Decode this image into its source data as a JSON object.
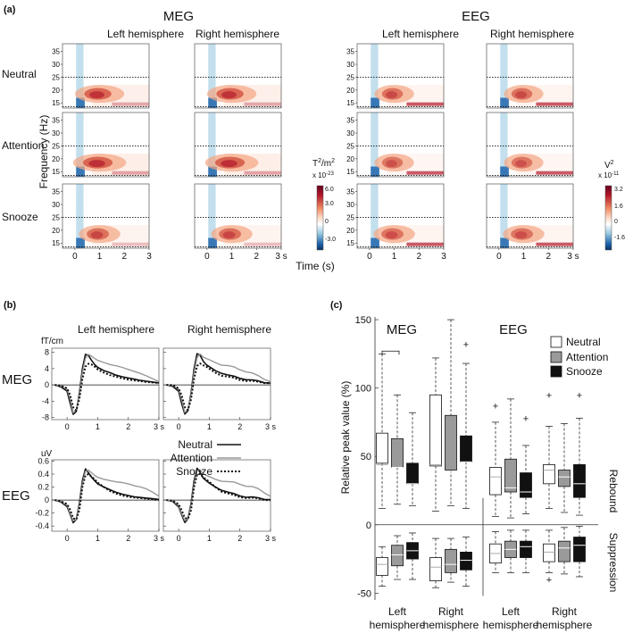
{
  "figure": {
    "panel_a": "(a)",
    "panel_b": "(b)",
    "panel_c": "(c)"
  },
  "chart_data": [
    {
      "type": "heatmap",
      "panel": "(a)",
      "groups": [
        "MEG",
        "EEG"
      ],
      "columns": [
        "Left hemisphere",
        "Right hemisphere"
      ],
      "rows": [
        "Neutral",
        "Attention",
        "Snooze"
      ],
      "ylabel": "Frequency (Hz)",
      "xlabel": "Time (s)",
      "yticks": [
        15,
        20,
        25,
        30,
        35
      ],
      "ylim": [
        13,
        38
      ],
      "xticks": [
        0,
        1,
        2,
        3
      ],
      "xlim": [
        -0.5,
        3
      ],
      "xunit": "s",
      "band_lines_hz": [
        25,
        13.5
      ],
      "meg_colorbar": {
        "unit_base": "T",
        "unit_sup": "2",
        "unit_sep": "/m",
        "unit_sup2": "2",
        "scale": "x 10",
        "scale_exp": "-23",
        "ticks": [
          "6.0",
          "3.0",
          "0",
          "-3.0"
        ]
      },
      "eeg_colorbar": {
        "unit_base": "V",
        "unit_sup": "2",
        "scale": "x 10",
        "scale_exp": "-11",
        "ticks": [
          "3.2",
          "1.6",
          "0",
          "-1.6"
        ]
      },
      "blobs": {
        "MEG": [
          [
            0.95,
            0.8
          ],
          [
            1.0,
            0.9
          ],
          [
            0.7,
            0.6
          ]
        ],
        "EEG": [
          [
            0.65,
            0.55
          ],
          [
            0.55,
            0.55
          ],
          [
            0.6,
            0.6
          ]
        ]
      }
    },
    {
      "type": "line",
      "panel": "(b)",
      "rows": [
        "MEG",
        "EEG"
      ],
      "columns": [
        "Left hemisphere",
        "Right hemisphere"
      ],
      "x": [
        -0.4,
        -0.2,
        0,
        0.1,
        0.2,
        0.3,
        0.4,
        0.5,
        0.6,
        0.7,
        0.8,
        0.9,
        1.0,
        1.2,
        1.4,
        1.6,
        1.8,
        2.0,
        2.2,
        2.4,
        2.6,
        2.8,
        3.0
      ],
      "xticks": [
        0,
        1,
        2,
        3
      ],
      "xlim": [
        -0.5,
        3
      ],
      "xunit": "s",
      "MEG": {
        "ylabel": "fT/cm",
        "yticks": [
          "8",
          "4",
          "0",
          "-4",
          "-8"
        ],
        "ytick_values": [
          8,
          4,
          0,
          -4,
          -8
        ],
        "ylim": [
          -8.5,
          9
        ],
        "series": [
          {
            "name": "Neutral",
            "values": [
              0,
              -0.5,
              -1.5,
              -4.5,
              -7.2,
              -6.5,
              -2,
              4,
              7.5,
              7.2,
              6,
              5,
              4.3,
              3.5,
              3,
              2.4,
              2,
              1.7,
              1.4,
              1.1,
              0.9,
              0.7,
              0.5
            ]
          },
          {
            "name": "Attention",
            "values": [
              0,
              -0.3,
              -1,
              -3.5,
              -6.8,
              -6.2,
              -2.5,
              3,
              6.5,
              7.5,
              7,
              6.5,
              6,
              5.5,
              5,
              4.7,
              4.3,
              3.8,
              3.3,
              2.8,
              2.2,
              1.5,
              0.8
            ]
          },
          {
            "name": "Snooze",
            "values": [
              0,
              -0.2,
              -0.8,
              -2.5,
              -5.5,
              -6.3,
              -3.5,
              1.5,
              4.5,
              5.2,
              5,
              4.5,
              3.8,
              3,
              2.4,
              2,
              1.6,
              1.3,
              1.1,
              0.9,
              0.7,
              0.6,
              0.5
            ]
          }
        ]
      },
      "EEG": {
        "ylabel": "uV",
        "yticks": [
          "0.6",
          "0.4",
          "0.2",
          "0",
          "-0.2",
          "-0.4"
        ],
        "ytick_values": [
          0.6,
          0.4,
          0.2,
          0,
          -0.2,
          -0.4
        ],
        "ylim": [
          -0.48,
          0.62
        ],
        "series": [
          {
            "name": "Neutral",
            "values": [
              0,
              -0.03,
              -0.1,
              -0.22,
              -0.35,
              -0.3,
              -0.05,
              0.3,
              0.48,
              0.42,
              0.35,
              0.3,
              0.25,
              0.2,
              0.16,
              0.12,
              0.09,
              0.07,
              0.05,
              0.04,
              0.03,
              0.02,
              0.01
            ]
          },
          {
            "name": "Attention",
            "values": [
              0,
              -0.02,
              -0.08,
              -0.2,
              -0.32,
              -0.3,
              -0.08,
              0.25,
              0.44,
              0.46,
              0.42,
              0.38,
              0.35,
              0.32,
              0.3,
              0.28,
              0.27,
              0.25,
              0.22,
              0.2,
              0.17,
              0.12,
              0.06
            ]
          },
          {
            "name": "Snooze",
            "values": [
              0,
              -0.02,
              -0.06,
              -0.15,
              -0.28,
              -0.3,
              -0.15,
              0.2,
              0.38,
              0.4,
              0.36,
              0.32,
              0.27,
              0.2,
              0.14,
              0.1,
              0.07,
              0.05,
              0.04,
              0.03,
              0.02,
              0.01,
              0
            ]
          }
        ]
      },
      "legend": [
        "Neutral",
        "Attention",
        "Snooze"
      ]
    },
    {
      "type": "box",
      "panel": "(c)",
      "groups": [
        "MEG",
        "EEG"
      ],
      "ylabel": "Relative peak value (%)",
      "yticks": [
        150,
        100,
        50,
        0,
        -50
      ],
      "ylim": [
        -55,
        152
      ],
      "x_labels": [
        [
          "Left",
          "hemisphere"
        ],
        [
          "Right",
          "hemisphere"
        ],
        [
          "Left",
          "hemisphere"
        ],
        [
          "Right",
          "hemisphere"
        ]
      ],
      "side_labels": [
        "Rebound",
        "Suppression"
      ],
      "legend": [
        "Neutral",
        "Attention",
        "Snooze"
      ],
      "rebound": [
        [
          [
            12,
            45,
            67,
            125,
            44
          ],
          [
            15,
            42,
            63,
            95,
            42
          ],
          [
            14,
            30,
            45,
            82,
            30
          ]
        ],
        [
          [
            10,
            43,
            95,
            122,
            44
          ],
          [
            14,
            40,
            80,
            150,
            39
          ],
          [
            12,
            46,
            65,
            118,
            46
          ]
        ],
        [
          [
            6,
            22,
            42,
            75,
            35
          ],
          [
            5,
            24,
            48,
            92,
            27
          ],
          [
            8,
            20,
            38,
            58,
            24
          ]
        ],
        [
          [
            12,
            30,
            44,
            72,
            40
          ],
          [
            9,
            28,
            40,
            74,
            35
          ],
          [
            7,
            20,
            44,
            78,
            30
          ]
        ]
      ],
      "rebound_outliers": [
        [],
        [
          [
            2,
            132
          ]
        ],
        [
          [
            0,
            87
          ],
          [
            2,
            78
          ]
        ],
        [
          [
            0,
            95
          ],
          [
            2,
            95
          ]
        ]
      ],
      "suppression": [
        [
          [
            -45,
            -37,
            -24,
            -16,
            -29
          ],
          [
            -40,
            -30,
            -15,
            -8,
            -22
          ],
          [
            -40,
            -25,
            -13,
            -6,
            -19
          ]
        ],
        [
          [
            -46,
            -41,
            -24,
            -10,
            -31
          ],
          [
            -42,
            -35,
            -18,
            -10,
            -29
          ],
          [
            -45,
            -33,
            -20,
            -9,
            -26
          ]
        ],
        [
          [
            -35,
            -28,
            -14,
            -5,
            -21
          ],
          [
            -35,
            -24,
            -12,
            -4,
            -18
          ],
          [
            -35,
            -24,
            -12,
            -4,
            -16
          ]
        ],
        [
          [
            -35,
            -27,
            -14,
            -4,
            -20
          ],
          [
            -36,
            -27,
            -12,
            -2,
            -17
          ],
          [
            -38,
            -27,
            -9,
            -1,
            -15
          ]
        ]
      ],
      "suppression_outliers": [
        [],
        [],
        [],
        [
          [
            0,
            -40
          ]
        ]
      ],
      "significance_bracket": "Left hemisphere MEG Neutral vs Attention"
    }
  ]
}
